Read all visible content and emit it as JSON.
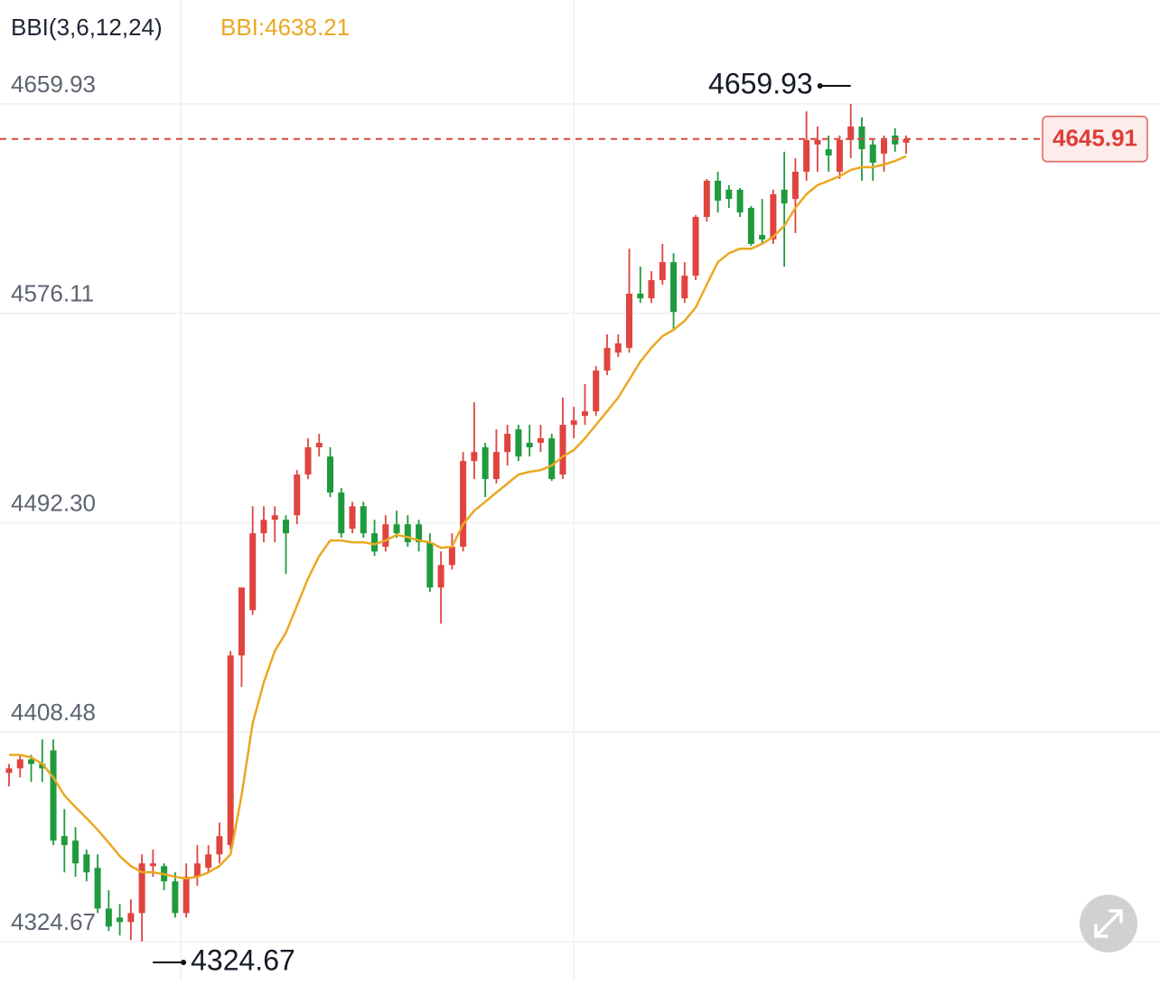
{
  "chart_data": {
    "type": "candlestick",
    "title": "BBI(3,6,12,24)",
    "indicator_label": "BBI:4638.21",
    "up_color": "#e0443e",
    "down_color": "#1f9a3c",
    "open": [
      4392.2,
      4394.0,
      4397.6,
      4395.8,
      4401.2,
      4366.9,
      4365.1,
      4359.6,
      4354.2,
      4337.9,
      4334.3,
      4332.5,
      4336.1,
      4354.9,
      4354.9,
      4348.8,
      4336.1,
      4350.6,
      4354.2,
      4359.6,
      4363.3,
      4439.2,
      4457.3,
      4488.1,
      4493.5,
      4493.5,
      4495.3,
      4511.6,
      4522.5,
      4518.8,
      4504.4,
      4489.9,
      4498.9,
      4488.1,
      4482.7,
      4491.7,
      4491.7,
      4491.7,
      4484.5,
      4466.4,
      4475.4,
      4482.7,
      4517.0,
      4522.5,
      4509.8,
      4520.6,
      4529.7,
      4524.3,
      4524.3,
      4526.1,
      4511.6,
      4531.5,
      4535.1,
      4536.9,
      4553.2,
      4560.4,
      4562.3,
      4584.0,
      4582.1,
      4589.4,
      4596.6,
      4582.1,
      4591.2,
      4614.7,
      4629.2,
      4625.6,
      4625.6,
      4618.3,
      4607.5,
      4605.7,
      4625.6,
      4621.9,
      4632.8,
      4643.7,
      4641.8,
      4632.8,
      4645.5,
      4650.9,
      4643.7,
      4640.0,
      4647.3,
      4644.4
    ],
    "high": [
      4395.8,
      4399.4,
      4399.4,
      4405.6,
      4405.6,
      4377.7,
      4370.5,
      4361.5,
      4359.6,
      4345.2,
      4339.7,
      4341.6,
      4359.6,
      4361.5,
      4356.0,
      4352.4,
      4356.0,
      4363.3,
      4363.3,
      4372.3,
      4441.0,
      4466.4,
      4498.9,
      4498.9,
      4498.9,
      4495.3,
      4513.4,
      4526.1,
      4527.9,
      4522.5,
      4506.2,
      4500.7,
      4500.7,
      4493.5,
      4495.3,
      4497.1,
      4495.3,
      4493.5,
      4488.1,
      4480.8,
      4488.1,
      4520.6,
      4540.5,
      4524.3,
      4529.7,
      4531.5,
      4531.5,
      4531.5,
      4531.5,
      4527.9,
      4542.4,
      4538.7,
      4547.8,
      4555.0,
      4567.7,
      4567.7,
      4602.0,
      4594.8,
      4593.0,
      4603.9,
      4600.2,
      4596.6,
      4615.4,
      4629.9,
      4632.8,
      4627.4,
      4626.3,
      4619.1,
      4621.9,
      4625.6,
      4640.8,
      4638.2,
      4657.0,
      4650.9,
      4647.3,
      4647.3,
      4659.93,
      4654.5,
      4645.5,
      4647.3,
      4650.2,
      4647.3
    ],
    "low": [
      4386.8,
      4390.4,
      4388.6,
      4388.6,
      4363.3,
      4352.4,
      4350.6,
      4348.8,
      4336.1,
      4328.9,
      4327.1,
      4325.3,
      4324.67,
      4350.6,
      4345.2,
      4334.3,
      4334.3,
      4347.0,
      4352.4,
      4356.0,
      4361.5,
      4426.6,
      4455.5,
      4484.5,
      4484.5,
      4471.8,
      4491.7,
      4509.8,
      4518.8,
      4502.6,
      4486.3,
      4488.1,
      4486.3,
      4479.0,
      4480.8,
      4486.3,
      4482.7,
      4480.8,
      4464.6,
      4451.9,
      4473.6,
      4480.8,
      4509.8,
      4502.6,
      4508.0,
      4515.2,
      4517.0,
      4518.8,
      4520.6,
      4509.1,
      4509.8,
      4526.1,
      4531.5,
      4535.1,
      4551.4,
      4558.6,
      4560.4,
      4580.3,
      4580.3,
      4587.6,
      4569.5,
      4580.3,
      4589.4,
      4612.9,
      4616.5,
      4618.3,
      4614.7,
      4603.1,
      4603.9,
      4603.9,
      4594.8,
      4608.2,
      4629.2,
      4632.8,
      4632.8,
      4629.9,
      4638.2,
      4629.2,
      4629.2,
      4632.8,
      4640.8,
      4640.0
    ],
    "close": [
      4394.0,
      4397.6,
      4395.8,
      4394.0,
      4365.1,
      4363.3,
      4356.0,
      4352.4,
      4337.9,
      4330.7,
      4332.5,
      4336.1,
      4356.0,
      4356.0,
      4348.8,
      4336.1,
      4350.6,
      4356.0,
      4359.6,
      4366.9,
      4439.2,
      4466.4,
      4488.1,
      4493.5,
      4495.3,
      4488.1,
      4511.6,
      4522.5,
      4524.3,
      4504.4,
      4488.1,
      4498.9,
      4488.1,
      4480.8,
      4491.7,
      4488.1,
      4484.5,
      4484.5,
      4466.4,
      4475.4,
      4482.7,
      4517.0,
      4520.6,
      4509.8,
      4520.6,
      4527.9,
      4518.8,
      4522.5,
      4526.1,
      4509.8,
      4531.5,
      4533.3,
      4536.9,
      4553.2,
      4562.3,
      4564.1,
      4584.0,
      4582.1,
      4589.4,
      4596.6,
      4576.7,
      4591.2,
      4614.7,
      4629.2,
      4621.2,
      4621.9,
      4616.5,
      4603.9,
      4605.7,
      4623.8,
      4620.1,
      4632.8,
      4645.5,
      4645.5,
      4639.3,
      4645.5,
      4650.9,
      4641.8,
      4636.4,
      4645.5,
      4643.7,
      4645.91
    ],
    "bbi": {
      "color": "#eaa822",
      "values": [
        4399.4,
        4399.4,
        4398.4,
        4395.8,
        4390.4,
        4383.2,
        4378.5,
        4374.1,
        4369.4,
        4364.3,
        4358.9,
        4354.9,
        4352.4,
        4352.4,
        4351.7,
        4350.6,
        4349.9,
        4350.6,
        4352.4,
        4354.9,
        4359.6,
        4383.2,
        4412.1,
        4428.4,
        4441.0,
        4448.3,
        4459.1,
        4470.0,
        4479.0,
        4485.2,
        4485.2,
        4484.5,
        4484.5,
        4483.7,
        4485.2,
        4487.4,
        4486.6,
        4485.2,
        4484.5,
        4482.3,
        4482.7,
        4491.7,
        4497.1,
        4500.7,
        4504.4,
        4508.0,
        4511.6,
        4512.7,
        4513.4,
        4515.2,
        4518.8,
        4521.4,
        4526.1,
        4531.5,
        4536.9,
        4542.4,
        4549.6,
        4556.8,
        4562.3,
        4567.0,
        4569.5,
        4573.1,
        4578.5,
        4587.6,
        4596.6,
        4600.2,
        4602.0,
        4602.0,
        4603.9,
        4606.8,
        4611.1,
        4618.3,
        4623.8,
        4627.4,
        4629.2,
        4631.0,
        4633.5,
        4634.6,
        4634.6,
        4635.7,
        4637.1,
        4639.0
      ]
    },
    "last_price": 4645.91,
    "max_marker": 4659.93,
    "min_marker": 4324.67,
    "ylim": [
      4324.67,
      4659.93
    ],
    "yticks": [
      4324.67,
      4408.48,
      {
        "value": 4492.3,
        "label": "4492.30"
      },
      4576.11,
      4659.93
    ],
    "grid": true
  }
}
